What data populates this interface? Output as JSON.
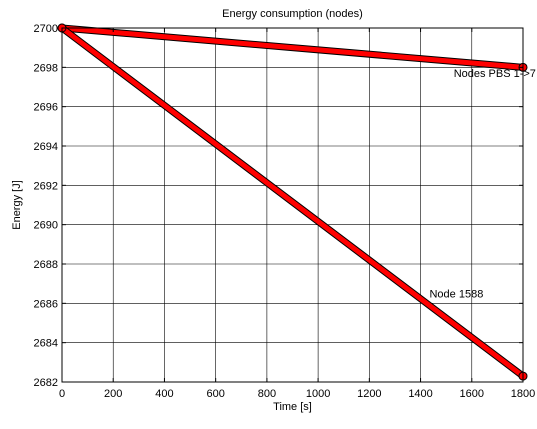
{
  "chart_data": {
    "type": "line",
    "title": "Energy consumption (nodes)",
    "xlabel": "Time [s]",
    "ylabel": "Energy [J]",
    "xlim": [
      0,
      1800
    ],
    "ylim": [
      2682,
      2700
    ],
    "xticks": [
      0,
      200,
      400,
      600,
      800,
      1000,
      1200,
      1400,
      1600,
      1800
    ],
    "yticks": [
      2682,
      2684,
      2686,
      2688,
      2690,
      2692,
      2694,
      2696,
      2698,
      2700
    ],
    "grid": true,
    "legend": "none",
    "series": [
      {
        "x": [
          0,
          1800
        ],
        "y": [
          2700,
          2698
        ],
        "color": "#ff0000"
      },
      {
        "x": [
          0,
          1800
        ],
        "y": [
          2700,
          2682.3
        ],
        "color": "#ff0000"
      }
    ],
    "annotations": [
      {
        "text": "Nodes PBS 1->7",
        "x": 1690,
        "y": 2697.5
      },
      {
        "text": "Node 1588",
        "x": 1540,
        "y": 2686.3
      }
    ]
  }
}
